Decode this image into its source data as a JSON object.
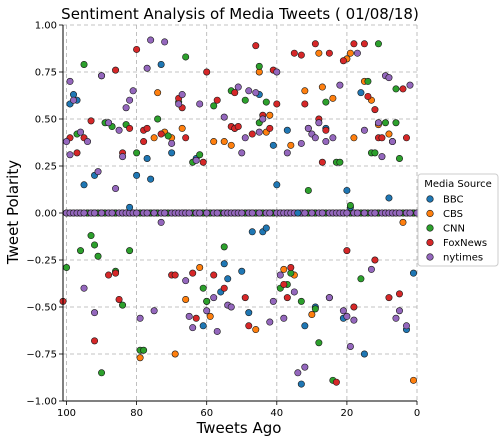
{
  "chart_data": {
    "type": "scatter",
    "title": "Sentiment Analysis of Media Tweets ( 01/08/18)",
    "xlabel": "Tweets Ago",
    "ylabel": "Tweet Polarity",
    "xlim": [
      101,
      0
    ],
    "ylim": [
      -1.0,
      1.0
    ],
    "x_ticks": [
      100,
      80,
      60,
      40,
      20,
      0
    ],
    "y_ticks": [
      1.0,
      0.75,
      0.5,
      0.25,
      0.0,
      -0.25,
      -0.5,
      -0.75,
      -1.0
    ],
    "x_tick_labels": [
      "100",
      "80",
      "60",
      "40",
      "20",
      "0"
    ],
    "y_tick_labels": [
      "1.00",
      "0.75",
      "0.50",
      "0.25",
      "0.00",
      "−0.25",
      "−0.50",
      "−0.75",
      "−1.00"
    ],
    "grid": true,
    "grid_style": "dashed",
    "legend_placement": "outside-right",
    "legend_title": "Media Source",
    "series": [
      {
        "name": "BBC",
        "color": "#1f77b4",
        "points": [
          [
            98,
            0.63
          ],
          [
            99,
            0.58
          ],
          [
            97,
            0.6
          ],
          [
            95,
            0.15
          ],
          [
            92,
            0.2
          ],
          [
            90,
            0.73
          ],
          [
            82,
            0.03
          ],
          [
            80,
            0.2
          ],
          [
            76,
            0.18
          ],
          [
            73,
            0.79
          ],
          [
            70,
            0.32
          ],
          [
            63,
            0.29
          ],
          [
            52,
            0.45
          ],
          [
            48,
            -0.53
          ],
          [
            47,
            -0.1
          ],
          [
            45,
            0.63
          ],
          [
            44,
            -0.1
          ],
          [
            43,
            -0.08
          ],
          [
            41,
            0.36
          ],
          [
            37,
            0.44
          ],
          [
            33,
            -0.91
          ],
          [
            32,
            -0.6
          ],
          [
            29,
            -0.5
          ],
          [
            26,
            0.45
          ],
          [
            25,
            -0.45
          ],
          [
            20,
            0.12
          ],
          [
            19,
            0.03
          ],
          [
            16,
            0.64
          ],
          [
            15,
            -0.75
          ],
          [
            8,
            0.08
          ],
          [
            3,
            -0.62
          ],
          [
            1,
            -0.32
          ],
          [
            77,
            0.29
          ],
          [
            56,
            -0.42
          ],
          [
            55,
            -0.27
          ],
          [
            54,
            -0.35
          ],
          [
            50,
            -0.31
          ],
          [
            61,
            -0.6
          ],
          [
            34,
            0.0
          ],
          [
            40,
            0.15
          ],
          [
            21,
            -0.56
          ]
        ]
      },
      {
        "name": "CBS",
        "color": "#ff7f0e",
        "points": [
          [
            79,
            -0.77
          ],
          [
            75,
            0.4
          ],
          [
            74,
            0.64
          ],
          [
            72,
            0.43
          ],
          [
            70,
            0.4
          ],
          [
            69,
            -0.75
          ],
          [
            67,
            0.45
          ],
          [
            66,
            -0.46
          ],
          [
            62,
            -0.29
          ],
          [
            59,
            -0.55
          ],
          [
            55,
            0.38
          ],
          [
            53,
            0.36
          ],
          [
            46,
            -0.62
          ],
          [
            45,
            0.75
          ],
          [
            43,
            0.43
          ],
          [
            42,
            0.52
          ],
          [
            36,
            0.36
          ],
          [
            32,
            0.65
          ],
          [
            30,
            -0.54
          ],
          [
            28,
            0.85
          ],
          [
            27,
            0.67
          ],
          [
            24,
            0.61
          ],
          [
            20,
            0.82
          ],
          [
            19,
            0.85
          ],
          [
            18,
            0.4
          ],
          [
            15,
            0.7
          ],
          [
            11,
            0.47
          ],
          [
            8,
            0.42
          ],
          [
            4,
            -0.05
          ],
          [
            1,
            -0.89
          ],
          [
            58,
            0.38
          ],
          [
            60,
            -0.47
          ],
          [
            38,
            -0.3
          ],
          [
            13,
            0.6
          ],
          [
            35,
            -0.33
          ]
        ]
      },
      {
        "name": "CNN",
        "color": "#2ca02c",
        "points": [
          [
            100,
            -0.29
          ],
          [
            97,
            0.42
          ],
          [
            96,
            -0.2
          ],
          [
            95,
            0.79
          ],
          [
            93,
            -0.12
          ],
          [
            92,
            -0.17
          ],
          [
            91,
            -0.23
          ],
          [
            90,
            -0.85
          ],
          [
            89,
            0.48
          ],
          [
            87,
            0.46
          ],
          [
            86,
            -0.31
          ],
          [
            84,
            -0.49
          ],
          [
            82,
            -0.2
          ],
          [
            80,
            0.32
          ],
          [
            79,
            -0.73
          ],
          [
            78,
            -0.73
          ],
          [
            74,
            0.5
          ],
          [
            71,
            0.41
          ],
          [
            68,
            0.59
          ],
          [
            66,
            0.83
          ],
          [
            64,
            0.27
          ],
          [
            62,
            0.31
          ],
          [
            60,
            -0.47
          ],
          [
            58,
            0.57
          ],
          [
            55,
            -0.18
          ],
          [
            53,
            0.65
          ],
          [
            49,
            0.6
          ],
          [
            45,
            0.48
          ],
          [
            45,
            0.78
          ],
          [
            43,
            0.59
          ],
          [
            39,
            -0.4
          ],
          [
            37,
            -0.38
          ],
          [
            36,
            -0.32
          ],
          [
            33,
            -0.47
          ],
          [
            31,
            0.12
          ],
          [
            29,
            -0.51
          ],
          [
            28,
            -0.69
          ],
          [
            26,
            0.59
          ],
          [
            24,
            -0.89
          ],
          [
            23,
            0.27
          ],
          [
            22,
            0.27
          ],
          [
            19,
            0.04
          ],
          [
            16,
            -0.35
          ],
          [
            14,
            0.7
          ],
          [
            13,
            0.32
          ],
          [
            12,
            0.32
          ],
          [
            11,
            0.9
          ],
          [
            9,
            0.48
          ],
          [
            6,
            0.48
          ],
          [
            6,
            0.66
          ],
          [
            5,
            0.29
          ],
          [
            83,
            0.47
          ],
          [
            61,
            -0.4
          ]
        ]
      },
      {
        "name": "FoxNews",
        "color": "#d62728",
        "points": [
          [
            101,
            -0.47
          ],
          [
            99,
            0.4
          ],
          [
            97,
            0.32
          ],
          [
            95,
            0.4
          ],
          [
            93,
            0.49
          ],
          [
            92,
            -0.68
          ],
          [
            88,
            -0.33
          ],
          [
            86,
            0.76
          ],
          [
            86,
            -0.32
          ],
          [
            85,
            -0.46
          ],
          [
            84,
            0.32
          ],
          [
            82,
            0.45
          ],
          [
            80,
            0.87
          ],
          [
            78,
            0.44
          ],
          [
            78,
            0.38
          ],
          [
            77,
            0.45
          ],
          [
            73,
            0.42
          ],
          [
            70,
            -0.33
          ],
          [
            69,
            -0.33
          ],
          [
            68,
            0.61
          ],
          [
            67,
            0.56
          ],
          [
            66,
            0.4
          ],
          [
            63,
            -0.56
          ],
          [
            61,
            0.27
          ],
          [
            60,
            0.75
          ],
          [
            58,
            -0.33
          ],
          [
            57,
            0.6
          ],
          [
            55,
            -0.4
          ],
          [
            53,
            0.46
          ],
          [
            52,
            0.45
          ],
          [
            52,
            0.64
          ],
          [
            51,
            0.46
          ],
          [
            49,
            -0.45
          ],
          [
            48,
            -0.6
          ],
          [
            47,
            0.42
          ],
          [
            46,
            0.89
          ],
          [
            44,
            0.52
          ],
          [
            42,
            0.45
          ],
          [
            41,
            0.76
          ],
          [
            40,
            0.58
          ],
          [
            38,
            -0.38
          ],
          [
            37,
            -0.45
          ],
          [
            36,
            -0.29
          ],
          [
            35,
            0.85
          ],
          [
            33,
            0.84
          ],
          [
            32,
            0.58
          ],
          [
            31,
            0.45
          ],
          [
            29,
            0.9
          ],
          [
            28,
            0.5
          ],
          [
            27,
            0.27
          ],
          [
            25,
            0.85
          ],
          [
            23,
            -0.9
          ],
          [
            21,
            0.81
          ],
          [
            20,
            -0.2
          ],
          [
            18,
            0.9
          ],
          [
            18,
            -0.5
          ],
          [
            15,
            0.9
          ],
          [
            14,
            0.62
          ],
          [
            12,
            0.55
          ],
          [
            12,
            -0.25
          ],
          [
            11,
            0.4
          ],
          [
            10,
            0.4
          ],
          [
            8,
            -0.45
          ],
          [
            7,
            0.38
          ],
          [
            5,
            -0.43
          ],
          [
            4,
            0.66
          ],
          [
            3,
            0.4
          ],
          [
            26,
            0.44
          ],
          [
            64,
            -0.32
          ]
        ]
      },
      {
        "name": "nytimes",
        "color": "#9467bd",
        "points": [
          [
            100,
            0.38
          ],
          [
            99,
            0.7
          ],
          [
            99,
            0.31
          ],
          [
            98,
            0.6
          ],
          [
            96,
            0.43
          ],
          [
            95,
            -0.4
          ],
          [
            94,
            0.38
          ],
          [
            92,
            -0.53
          ],
          [
            90,
            0.73
          ],
          [
            88,
            0.48
          ],
          [
            86,
            0.13
          ],
          [
            85,
            0.44
          ],
          [
            84,
            0.3
          ],
          [
            83,
            0.56
          ],
          [
            82,
            0.6
          ],
          [
            81,
            0.65
          ],
          [
            79,
            -0.56
          ],
          [
            77,
            0.77
          ],
          [
            76,
            0.92
          ],
          [
            75,
            -0.52
          ],
          [
            73,
            -0.05
          ],
          [
            72,
            0.91
          ],
          [
            70,
            0.37
          ],
          [
            68,
            0.58
          ],
          [
            67,
            0.63
          ],
          [
            66,
            -0.36
          ],
          [
            65,
            -0.55
          ],
          [
            64,
            -0.61
          ],
          [
            62,
            0.58
          ],
          [
            60,
            -0.52
          ],
          [
            58,
            -0.45
          ],
          [
            57,
            -0.63
          ],
          [
            55,
            0.51
          ],
          [
            54,
            -0.49
          ],
          [
            53,
            -0.5
          ],
          [
            51,
            0.67
          ],
          [
            50,
            0.32
          ],
          [
            49,
            0.4
          ],
          [
            48,
            0.65
          ],
          [
            46,
            0.64
          ],
          [
            45,
            0.43
          ],
          [
            44,
            0.5
          ],
          [
            42,
            -0.58
          ],
          [
            41,
            -0.47
          ],
          [
            40,
            0.75
          ],
          [
            38,
            -0.56
          ],
          [
            37,
            0.32
          ],
          [
            35,
            -0.42
          ],
          [
            34,
            -0.85
          ],
          [
            33,
            0.37
          ],
          [
            31,
            0.45
          ],
          [
            30,
            0.42
          ],
          [
            29,
            0.4
          ],
          [
            28,
            0.48
          ],
          [
            26,
            0.38
          ],
          [
            25,
            -0.45
          ],
          [
            24,
            0.4
          ],
          [
            22,
            0.68
          ],
          [
            21,
            -0.52
          ],
          [
            20,
            -0.55
          ],
          [
            19,
            -0.71
          ],
          [
            18,
            -0.57
          ],
          [
            17,
            0.85
          ],
          [
            15,
            0.44
          ],
          [
            13,
            -0.3
          ],
          [
            11,
            0.48
          ],
          [
            10,
            0.3
          ],
          [
            9,
            0.73
          ],
          [
            8,
            0.72
          ],
          [
            7,
            0.38
          ],
          [
            6,
            -0.56
          ],
          [
            5,
            -0.52
          ],
          [
            2,
            0.68
          ],
          [
            3,
            -0.6
          ],
          [
            63,
            0.28
          ],
          [
            91,
            0.22
          ],
          [
            39,
            -0.33
          ],
          [
            32,
            -0.82
          ]
        ]
      }
    ]
  }
}
